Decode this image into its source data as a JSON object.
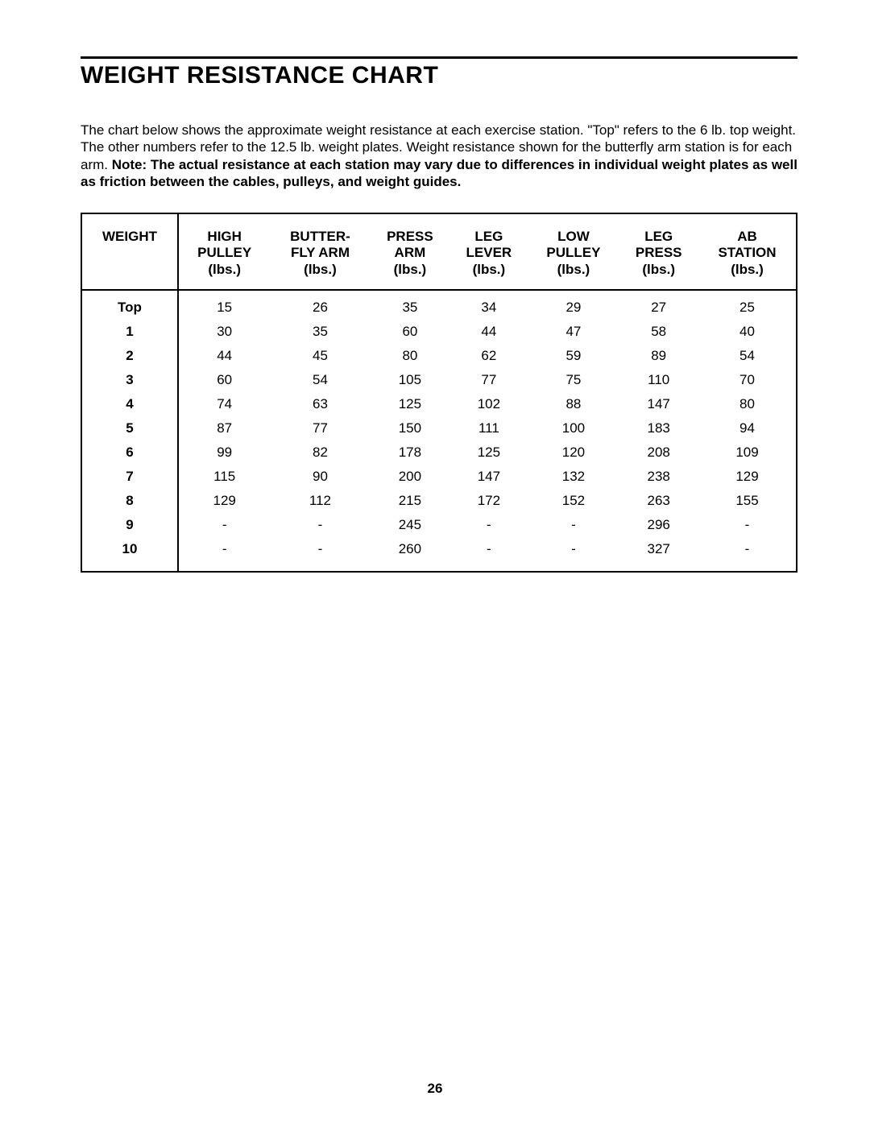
{
  "title": "WEIGHT RESISTANCE CHART",
  "intro_plain": "The chart below shows the approximate weight resistance at each exercise station. \"Top\" refers to the 6 lb. top weight. The other numbers refer to the 12.5 lb. weight plates. Weight resistance shown for the butterfly arm station is for each arm. ",
  "intro_bold": "Note: The actual resistance at each station may vary due to differences in individual weight plates as well as friction between the cables, pulleys, and weight guides.",
  "page_number": "26",
  "table": {
    "columns": [
      "WEIGHT",
      "HIGH\nPULLEY\n(lbs.)",
      "BUTTER-\nFLY ARM\n(lbs.)",
      "PRESS\nARM\n(lbs.)",
      "LEG\nLEVER\n(lbs.)",
      "LOW\nPULLEY\n(lbs.)",
      "LEG\nPRESS\n(lbs.)",
      "AB\nSTATION\n(lbs.)"
    ],
    "rows": [
      [
        "Top",
        "15",
        "26",
        "35",
        "34",
        "29",
        "27",
        "25"
      ],
      [
        "1",
        "30",
        "35",
        "60",
        "44",
        "47",
        "58",
        "40"
      ],
      [
        "2",
        "44",
        "45",
        "80",
        "62",
        "59",
        "89",
        "54"
      ],
      [
        "3",
        "60",
        "54",
        "105",
        "77",
        "75",
        "110",
        "70"
      ],
      [
        "4",
        "74",
        "63",
        "125",
        "102",
        "88",
        "147",
        "80"
      ],
      [
        "5",
        "87",
        "77",
        "150",
        "111",
        "100",
        "183",
        "94"
      ],
      [
        "6",
        "99",
        "82",
        "178",
        "125",
        "120",
        "208",
        "109"
      ],
      [
        "7",
        "115",
        "90",
        "200",
        "147",
        "132",
        "238",
        "129"
      ],
      [
        "8",
        "129",
        "112",
        "215",
        "172",
        "152",
        "263",
        "155"
      ],
      [
        "9",
        "-",
        "-",
        "245",
        "-",
        "-",
        "296",
        "-"
      ],
      [
        "10",
        "-",
        "-",
        "260",
        "-",
        "-",
        "327",
        "-"
      ]
    ],
    "header_fontsize": 17,
    "body_fontsize": 17,
    "border_color": "#000000",
    "background_color": "#ffffff"
  }
}
